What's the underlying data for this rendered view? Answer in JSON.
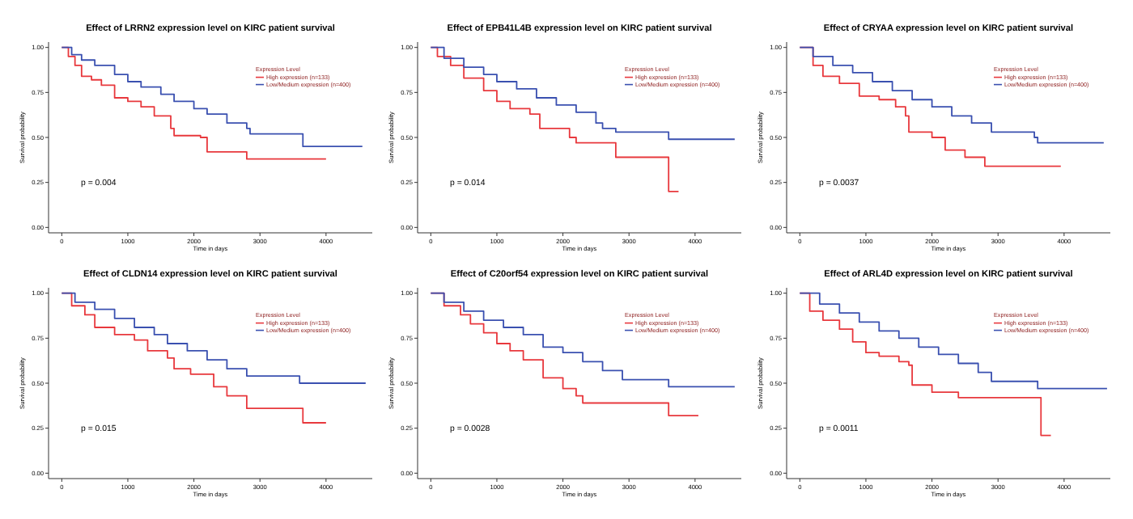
{
  "chart_data": [
    {
      "type": "step",
      "title": "Effect of LRRN2 expression level on KIRC patient survival",
      "xlabel": "Time in days",
      "ylabel": "Survival probability",
      "legend_title": "Expression Level",
      "legend": "top right",
      "grid": false,
      "xlim": [
        -200,
        4700
      ],
      "ylim": [
        -0.03,
        1.03
      ],
      "xticks": [
        0,
        1000,
        2000,
        3000,
        4000
      ],
      "yticks": [
        {
          "value": 0,
          "label": "0.00"
        },
        {
          "value": 0.25,
          "label": "0.25"
        },
        {
          "value": 0.5,
          "label": "0.50"
        },
        {
          "value": 0.75,
          "label": "0.75"
        },
        {
          "value": 1,
          "label": "1.00"
        }
      ],
      "annotations": [
        "p = 0.004"
      ],
      "series": [
        {
          "name": "High expression (n=133)",
          "color": "#e8383d",
          "x": [
            0,
            100,
            200,
            300,
            450,
            600,
            800,
            1000,
            1200,
            1400,
            1650,
            1700,
            2100,
            2200,
            2800,
            4000
          ],
          "values": [
            1,
            0.95,
            0.9,
            0.84,
            0.82,
            0.79,
            0.72,
            0.7,
            0.67,
            0.62,
            0.55,
            0.51,
            0.5,
            0.42,
            0.38,
            0.38
          ]
        },
        {
          "name": "Low/Medium expression (n=400)",
          "color": "#3a50b0",
          "x": [
            0,
            150,
            300,
            500,
            800,
            1000,
            1200,
            1500,
            1700,
            2000,
            2200,
            2500,
            2800,
            2850,
            3600,
            3650,
            4550
          ],
          "values": [
            1,
            0.96,
            0.93,
            0.9,
            0.85,
            0.81,
            0.78,
            0.74,
            0.7,
            0.66,
            0.63,
            0.58,
            0.55,
            0.52,
            0.52,
            0.45,
            0.45
          ]
        }
      ]
    },
    {
      "type": "step",
      "title": "Effect of EPB41L4B expression level on KIRC patient survival",
      "xlabel": "Time in days",
      "ylabel": "Survival probability",
      "legend_title": "Expression Level",
      "legend": "top right",
      "grid": false,
      "xlim": [
        -200,
        4700
      ],
      "ylim": [
        -0.03,
        1.03
      ],
      "xticks": [
        0,
        1000,
        2000,
        3000,
        4000
      ],
      "yticks": [
        {
          "value": 0,
          "label": "0.00"
        },
        {
          "value": 0.25,
          "label": "0.25"
        },
        {
          "value": 0.5,
          "label": "0.50"
        },
        {
          "value": 0.75,
          "label": "0.75"
        },
        {
          "value": 1,
          "label": "1.00"
        }
      ],
      "annotations": [
        "p = 0.014"
      ],
      "series": [
        {
          "name": "High expression (n=133)",
          "color": "#e8383d",
          "x": [
            0,
            100,
            300,
            500,
            800,
            1000,
            1200,
            1500,
            1650,
            2100,
            2200,
            2800,
            3600,
            3750
          ],
          "values": [
            1,
            0.95,
            0.9,
            0.83,
            0.76,
            0.7,
            0.66,
            0.63,
            0.55,
            0.5,
            0.47,
            0.39,
            0.2,
            0.2
          ]
        },
        {
          "name": "Low/Medium expression (n=400)",
          "color": "#3a50b0",
          "x": [
            0,
            200,
            500,
            800,
            1000,
            1300,
            1600,
            1900,
            2200,
            2500,
            2600,
            2800,
            3600,
            4600
          ],
          "values": [
            1,
            0.94,
            0.89,
            0.85,
            0.81,
            0.77,
            0.72,
            0.68,
            0.64,
            0.58,
            0.55,
            0.53,
            0.49,
            0.49
          ]
        }
      ]
    },
    {
      "type": "step",
      "title": "Effect of CRYAA expression level on KIRC patient survival",
      "xlabel": "Time in days",
      "ylabel": "Survival probability",
      "legend_title": "Expression Level",
      "legend": "top right",
      "grid": false,
      "xlim": [
        -200,
        4700
      ],
      "ylim": [
        -0.03,
        1.03
      ],
      "xticks": [
        0,
        1000,
        2000,
        3000,
        4000
      ],
      "yticks": [
        {
          "value": 0,
          "label": "0.00"
        },
        {
          "value": 0.25,
          "label": "0.25"
        },
        {
          "value": 0.5,
          "label": "0.50"
        },
        {
          "value": 0.75,
          "label": "0.75"
        },
        {
          "value": 1,
          "label": "1.00"
        }
      ],
      "annotations": [
        "p = 0.0037"
      ],
      "series": [
        {
          "name": "High expression (n=133)",
          "color": "#e8383d",
          "x": [
            0,
            200,
            350,
            600,
            900,
            1200,
            1450,
            1600,
            1650,
            2000,
            2200,
            2500,
            2800,
            3950
          ],
          "values": [
            1,
            0.9,
            0.84,
            0.8,
            0.73,
            0.71,
            0.67,
            0.62,
            0.53,
            0.5,
            0.43,
            0.39,
            0.34,
            0.34
          ]
        },
        {
          "name": "Low/Medium expression (n=400)",
          "color": "#3a50b0",
          "x": [
            0,
            200,
            500,
            800,
            1100,
            1400,
            1700,
            2000,
            2300,
            2600,
            2900,
            3550,
            3600,
            4600
          ],
          "values": [
            1,
            0.95,
            0.9,
            0.86,
            0.81,
            0.76,
            0.71,
            0.67,
            0.62,
            0.58,
            0.53,
            0.5,
            0.47,
            0.47
          ]
        }
      ]
    },
    {
      "type": "step",
      "title": "Effect of CLDN14 expression level on KIRC patient survival",
      "xlabel": "Time in days",
      "ylabel": "Survival probability",
      "legend_title": "Expression Level",
      "legend": "top right",
      "grid": false,
      "xlim": [
        -200,
        4700
      ],
      "ylim": [
        -0.03,
        1.03
      ],
      "xticks": [
        0,
        1000,
        2000,
        3000,
        4000
      ],
      "yticks": [
        {
          "value": 0,
          "label": "0.00"
        },
        {
          "value": 0.25,
          "label": "0.25"
        },
        {
          "value": 0.5,
          "label": "0.50"
        },
        {
          "value": 0.75,
          "label": "0.75"
        },
        {
          "value": 1,
          "label": "1.00"
        }
      ],
      "annotations": [
        "p = 0.015"
      ],
      "series": [
        {
          "name": "High expression (n=133)",
          "color": "#e8383d",
          "x": [
            0,
            150,
            350,
            500,
            800,
            1100,
            1300,
            1600,
            1700,
            1950,
            2300,
            2500,
            2800,
            3650,
            4000
          ],
          "values": [
            1,
            0.93,
            0.88,
            0.81,
            0.77,
            0.74,
            0.68,
            0.64,
            0.58,
            0.55,
            0.48,
            0.43,
            0.36,
            0.28,
            0.28
          ]
        },
        {
          "name": "Low/Medium expression (n=400)",
          "color": "#3a50b0",
          "x": [
            0,
            200,
            500,
            800,
            1100,
            1400,
            1600,
            1900,
            2200,
            2500,
            2800,
            3600,
            4600
          ],
          "values": [
            1,
            0.95,
            0.91,
            0.86,
            0.81,
            0.77,
            0.72,
            0.68,
            0.63,
            0.58,
            0.54,
            0.5,
            0.5
          ]
        }
      ]
    },
    {
      "type": "step",
      "title": "Effect of C20orf54 expression level on KIRC patient survival",
      "xlabel": "Time in days",
      "ylabel": "Survival probability",
      "legend_title": "Expression Level",
      "legend": "top right",
      "grid": false,
      "xlim": [
        -200,
        4700
      ],
      "ylim": [
        -0.03,
        1.03
      ],
      "xticks": [
        0,
        1000,
        2000,
        3000,
        4000
      ],
      "yticks": [
        {
          "value": 0,
          "label": "0.00"
        },
        {
          "value": 0.25,
          "label": "0.25"
        },
        {
          "value": 0.5,
          "label": "0.50"
        },
        {
          "value": 0.75,
          "label": "0.75"
        },
        {
          "value": 1,
          "label": "1.00"
        }
      ],
      "annotations": [
        "p = 0.0028"
      ],
      "series": [
        {
          "name": "High expression (n=133)",
          "color": "#e8383d",
          "x": [
            0,
            200,
            450,
            600,
            800,
            1000,
            1200,
            1400,
            1700,
            2000,
            2200,
            2300,
            3600,
            4050
          ],
          "values": [
            1,
            0.93,
            0.88,
            0.83,
            0.78,
            0.72,
            0.68,
            0.63,
            0.53,
            0.47,
            0.43,
            0.39,
            0.32,
            0.32
          ]
        },
        {
          "name": "Low/Medium expression (n=400)",
          "color": "#3a50b0",
          "x": [
            0,
            200,
            500,
            800,
            1100,
            1400,
            1700,
            2000,
            2300,
            2600,
            2900,
            3600,
            4600
          ],
          "values": [
            1,
            0.95,
            0.9,
            0.85,
            0.81,
            0.77,
            0.7,
            0.67,
            0.62,
            0.57,
            0.52,
            0.48,
            0.48
          ]
        }
      ]
    },
    {
      "type": "step",
      "title": "Effect of ARL4D expression level on KIRC patient survival",
      "xlabel": "Time in days",
      "ylabel": "Survival probability",
      "legend_title": "Expression Level",
      "legend": "top right",
      "grid": false,
      "xlim": [
        -200,
        4700
      ],
      "ylim": [
        -0.03,
        1.03
      ],
      "xticks": [
        0,
        1000,
        2000,
        3000,
        4000
      ],
      "yticks": [
        {
          "value": 0,
          "label": "0.00"
        },
        {
          "value": 0.25,
          "label": "0.25"
        },
        {
          "value": 0.5,
          "label": "0.50"
        },
        {
          "value": 0.75,
          "label": "0.75"
        },
        {
          "value": 1,
          "label": "1.00"
        }
      ],
      "annotations": [
        "p = 0.0011"
      ],
      "series": [
        {
          "name": "High expression (n=133)",
          "color": "#e8383d",
          "x": [
            0,
            150,
            350,
            600,
            800,
            1000,
            1200,
            1500,
            1650,
            1700,
            2000,
            2400,
            3650,
            3800
          ],
          "values": [
            1,
            0.9,
            0.85,
            0.8,
            0.73,
            0.67,
            0.65,
            0.62,
            0.6,
            0.49,
            0.45,
            0.42,
            0.21,
            0.21
          ]
        },
        {
          "name": "Low/Medium expression (n=400)",
          "color": "#3a50b0",
          "x": [
            0,
            300,
            600,
            900,
            1200,
            1500,
            1800,
            2100,
            2400,
            2700,
            2900,
            3600,
            4650
          ],
          "values": [
            1,
            0.94,
            0.89,
            0.84,
            0.79,
            0.75,
            0.7,
            0.66,
            0.61,
            0.56,
            0.51,
            0.47,
            0.47
          ]
        }
      ]
    }
  ]
}
